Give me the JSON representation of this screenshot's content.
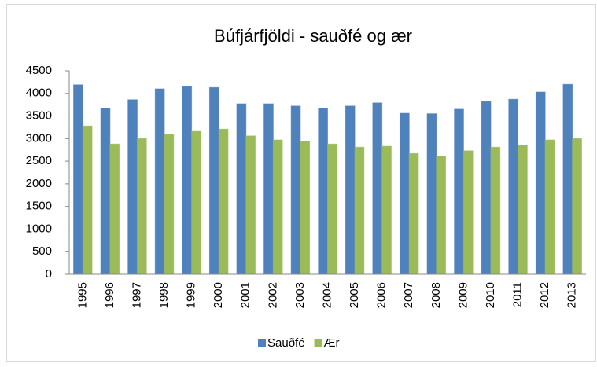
{
  "chart_data": {
    "type": "bar",
    "title": "Búfjárfjöldi - sauðfé og ær",
    "categories": [
      "1995",
      "1996",
      "1997",
      "1998",
      "1999",
      "2000",
      "2001",
      "2002",
      "2003",
      "2004",
      "2005",
      "2006",
      "2007",
      "2008",
      "2009",
      "2010",
      "2011",
      "2012",
      "2013"
    ],
    "series": [
      {
        "name": "Sauðfé",
        "color": "#4f81bd",
        "values": [
          4190,
          3670,
          3860,
          4100,
          4150,
          4130,
          3770,
          3770,
          3720,
          3670,
          3720,
          3790,
          3560,
          3550,
          3650,
          3820,
          3870,
          4030,
          4200
        ]
      },
      {
        "name": "Ær",
        "color": "#9bbb59",
        "values": [
          3280,
          2880,
          3000,
          3090,
          3160,
          3210,
          3060,
          2970,
          2940,
          2880,
          2810,
          2830,
          2670,
          2610,
          2730,
          2810,
          2850,
          2970,
          3000
        ]
      }
    ],
    "ylim": [
      0,
      4500
    ],
    "yticks": [
      0,
      500,
      1000,
      1500,
      2000,
      2500,
      3000,
      3500,
      4000,
      4500
    ],
    "grid": false,
    "legend": "bottom"
  }
}
